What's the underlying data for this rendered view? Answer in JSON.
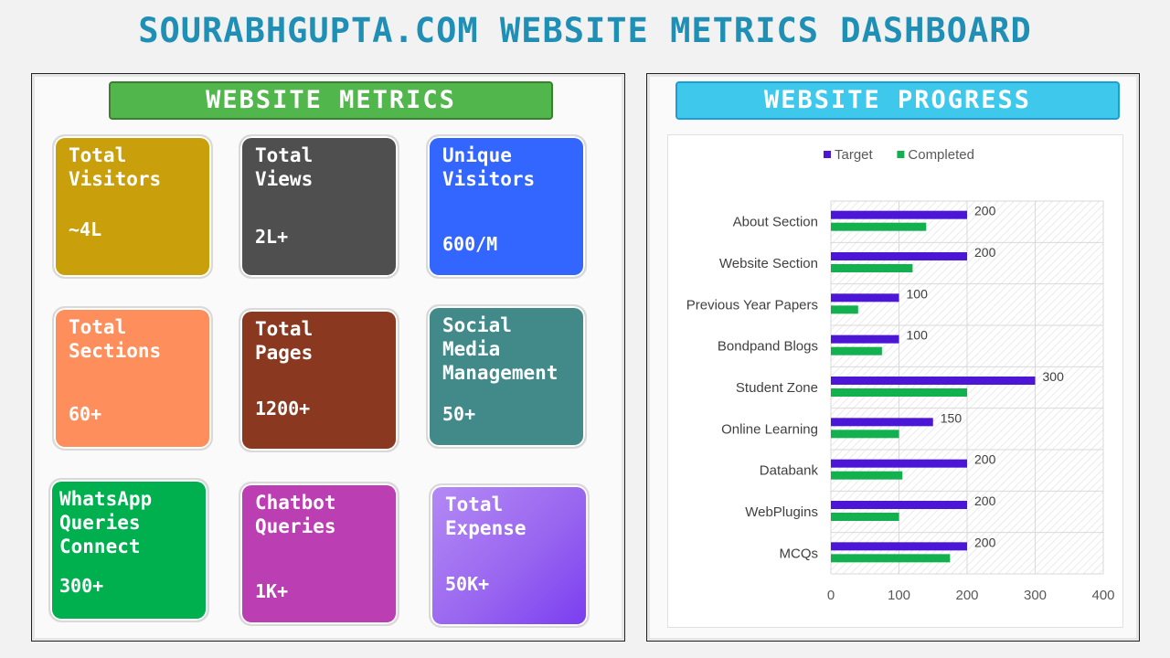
{
  "title": "SOURABHGUPTA.COM WEBSITE METRICS DASHBOARD",
  "metrics": {
    "header": "WEBSITE METRICS",
    "tiles": [
      {
        "label": "Total\nVisitors",
        "value": "~4L",
        "color": "#c9a00b"
      },
      {
        "label": "Total\nViews",
        "value": "2L+",
        "color": "#4f4f4f"
      },
      {
        "label": "Unique\nVisitors",
        "value": "600/M",
        "color": "#3366ff"
      },
      {
        "label": "Total\nSections",
        "value": "60+",
        "color": "#fe8f5d"
      },
      {
        "label": "Total\nPages",
        "value": "1200+",
        "color": "#8a3920"
      },
      {
        "label": "Social\nMedia\nManagement",
        "value": "50+",
        "color": "#428a8a"
      },
      {
        "label": "WhatsApp\nQueries\nConnect",
        "value": "300+",
        "color": "#00b04f"
      },
      {
        "label": "Chatbot\nQueries",
        "value": "1K+",
        "color": "#bc3eb3"
      },
      {
        "label": "Total\nExpense",
        "value": "50K+",
        "color": "#9966f0"
      }
    ]
  },
  "progress": {
    "header": "WEBSITE PROGRESS"
  },
  "chart_data": {
    "type": "bar",
    "orientation": "horizontal",
    "categories": [
      "About  Section",
      "Website Section",
      "Previous  Year Papers",
      "Bondpand Blogs",
      "Student Zone",
      "Online Learning",
      "Databank",
      "WebPlugins",
      "MCQs"
    ],
    "series": [
      {
        "name": "Target",
        "color": "#4b16d6",
        "values": [
          200,
          200,
          100,
          100,
          300,
          150,
          200,
          200,
          200
        ],
        "labels_shown": true
      },
      {
        "name": "Completed",
        "color": "#12b04f",
        "values": [
          140,
          120,
          40,
          75,
          200,
          100,
          105,
          100,
          175
        ],
        "labels_shown": false
      }
    ],
    "xlim": [
      0,
      400
    ],
    "xticks": [
      0,
      100,
      200,
      300,
      400
    ],
    "legend": "top",
    "grid": true
  }
}
